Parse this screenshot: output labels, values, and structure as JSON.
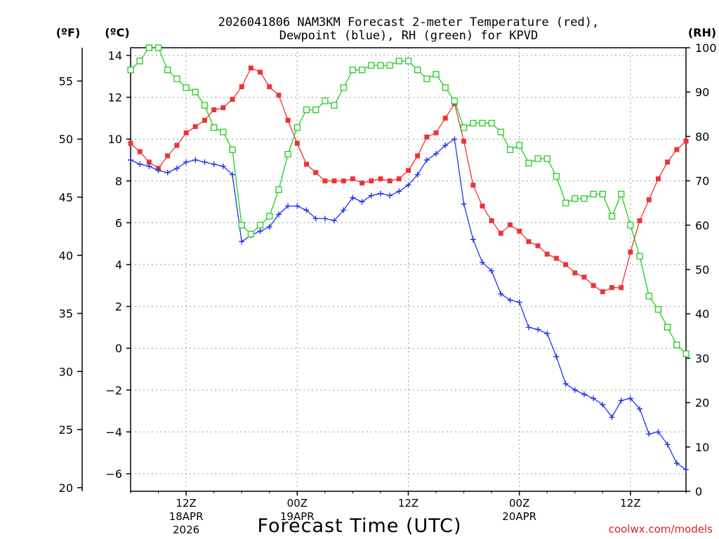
{
  "chart_data": {
    "type": "line",
    "title_line1": "2026041806 NAM3KM Forecast 2-meter Temperature (red),",
    "title_line2": "Dewpoint (blue), RH (green) for KPVD",
    "xlabel": "Forecast Time (UTC)",
    "left_axis_f_label": "(ºF)",
    "left_axis_c_label": "(ºC)",
    "right_axis_label": "(RH)",
    "credit": "coolwx.com/models",
    "x_hours": [
      6,
      7,
      8,
      9,
      10,
      11,
      12,
      13,
      14,
      15,
      16,
      17,
      18,
      19,
      20,
      21,
      22,
      23,
      24,
      25,
      26,
      27,
      28,
      29,
      30,
      31,
      32,
      33,
      34,
      35,
      36,
      37,
      38,
      39,
      40,
      41,
      42,
      43,
      44,
      45,
      46,
      47,
      48,
      49,
      50,
      51,
      52,
      53,
      54,
      55,
      56,
      57,
      58,
      59,
      60,
      61,
      62,
      63,
      64,
      65,
      66
    ],
    "xlim": [
      6,
      66
    ],
    "x_ticks": [
      {
        "hour": 12,
        "line1": "12Z",
        "line2": "18APR",
        "line3": "2026"
      },
      {
        "hour": 24,
        "line1": "00Z",
        "line2": "19APR",
        "line3": ""
      },
      {
        "hour": 36,
        "line1": "12Z",
        "line2": "",
        "line3": ""
      },
      {
        "hour": 48,
        "line1": "00Z",
        "line2": "20APR",
        "line3": ""
      },
      {
        "hour": 60,
        "line1": "12Z",
        "line2": "",
        "line3": ""
      }
    ],
    "ylim_c": [
      -7,
      14.3
    ],
    "y_ticks_c": [
      14,
      12,
      10,
      8,
      6,
      4,
      2,
      0,
      -2,
      -4,
      -6
    ],
    "y_ticks_f": [
      55,
      50,
      45,
      40,
      35,
      30,
      25,
      20
    ],
    "ylim_rh": [
      0,
      100
    ],
    "y_ticks_rh": [
      100,
      90,
      80,
      70,
      60,
      50,
      40,
      30,
      20,
      10,
      0
    ],
    "series": [
      {
        "name": "2-meter Temperature",
        "axis": "celsius",
        "color": "#ee3333",
        "marker": "filled-square",
        "values": [
          9.8,
          9.4,
          8.9,
          8.6,
          9.2,
          9.7,
          10.3,
          10.6,
          10.9,
          11.4,
          11.5,
          11.9,
          12.5,
          13.4,
          13.2,
          12.5,
          12.1,
          10.9,
          9.8,
          8.8,
          8.4,
          8.0,
          8.0,
          8.0,
          8.1,
          7.9,
          8.0,
          8.1,
          8.0,
          8.1,
          8.5,
          9.2,
          10.1,
          10.3,
          11.0,
          11.7,
          9.9,
          7.8,
          6.8,
          6.1,
          5.5,
          5.9,
          5.6,
          5.1,
          4.9,
          4.5,
          4.3,
          4.0,
          3.6,
          3.4,
          3.0,
          2.7,
          2.9,
          2.9,
          4.6,
          6.1,
          7.1,
          8.1,
          8.9,
          9.5,
          9.9
        ]
      },
      {
        "name": "Dewpoint",
        "axis": "celsius",
        "color": "#2233ee",
        "marker": "plus",
        "values": [
          9.0,
          8.8,
          8.7,
          8.5,
          8.4,
          8.6,
          8.9,
          9.0,
          8.9,
          8.8,
          8.7,
          8.3,
          5.1,
          5.4,
          5.6,
          5.8,
          6.4,
          6.8,
          6.8,
          6.6,
          6.2,
          6.2,
          6.1,
          6.6,
          7.2,
          7.0,
          7.3,
          7.4,
          7.3,
          7.5,
          7.8,
          8.3,
          9.0,
          9.3,
          9.7,
          10.0,
          6.9,
          5.2,
          4.1,
          3.7,
          2.6,
          2.3,
          2.2,
          1.0,
          0.9,
          0.7,
          -0.4,
          -1.7,
          -2.0,
          -2.2,
          -2.4,
          -2.7,
          -3.3,
          -2.5,
          -2.4,
          -2.9,
          -4.1,
          -4.0,
          -4.6,
          -5.5,
          -5.8
        ]
      },
      {
        "name": "RH",
        "axis": "rh",
        "color": "#22cc22",
        "marker": "open-square",
        "values": [
          95,
          97,
          100,
          100,
          95,
          93,
          91,
          90,
          87,
          82,
          81,
          77,
          60,
          58,
          60,
          62,
          68,
          76,
          82,
          86,
          86,
          88,
          87,
          91,
          95,
          95,
          96,
          96,
          96,
          97,
          97,
          95,
          93,
          94,
          91,
          88,
          82,
          83,
          83,
          83,
          81,
          77,
          78,
          74,
          75,
          75,
          71,
          65,
          66,
          66,
          67,
          67,
          62,
          67,
          60,
          53,
          44,
          41,
          37,
          33,
          31
        ]
      }
    ]
  }
}
